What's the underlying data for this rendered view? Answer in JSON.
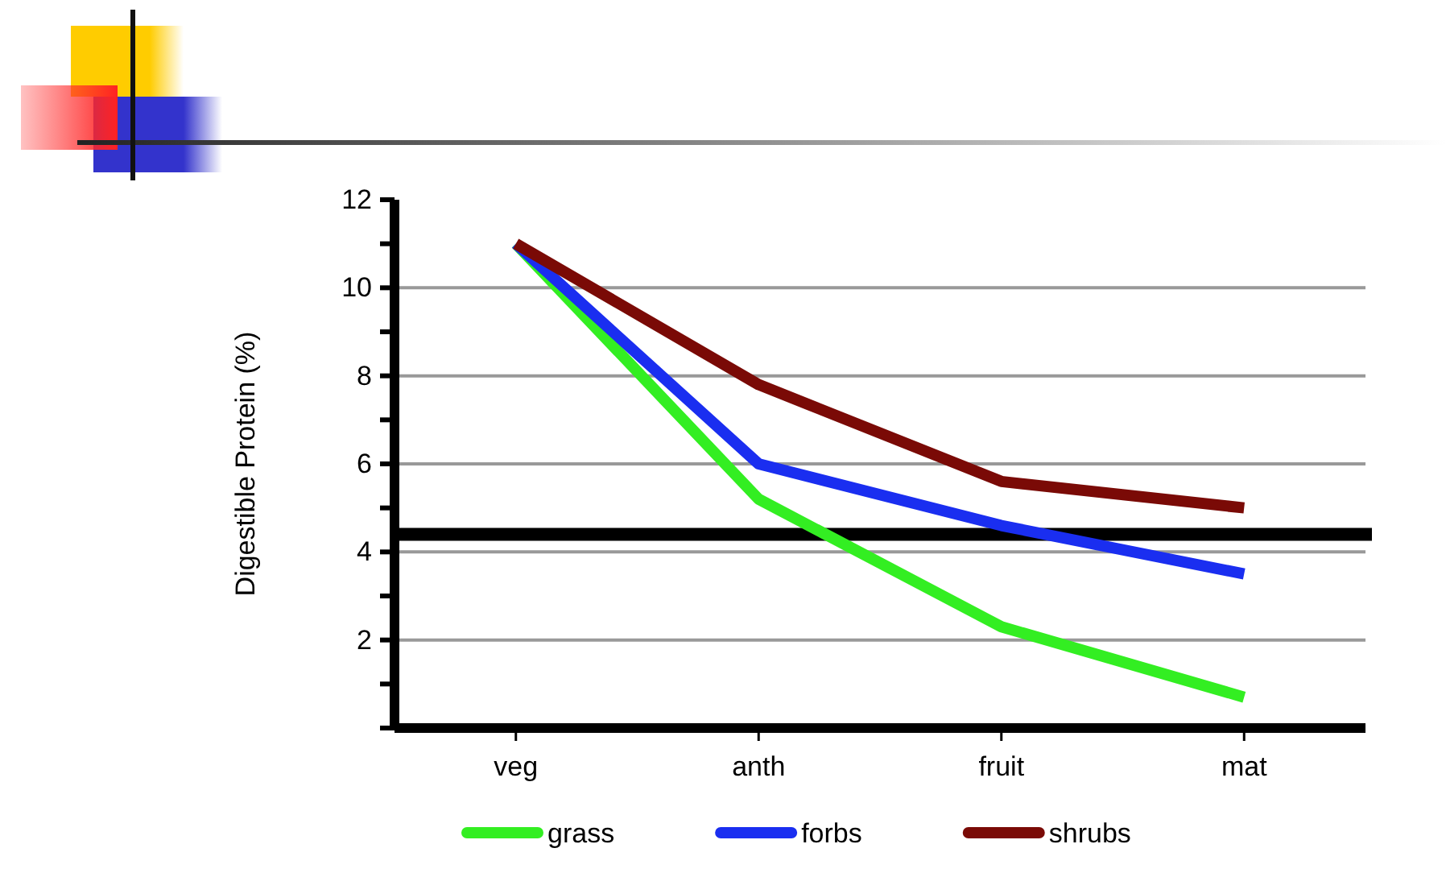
{
  "chart_data": {
    "type": "line",
    "ylabel": "Digestible Protein (%)",
    "categories": [
      "veg",
      "anth",
      "fruit",
      "mat"
    ],
    "series": [
      {
        "name": "grass",
        "color": "#33ee22",
        "values": [
          11,
          5.2,
          2.3,
          0.7
        ]
      },
      {
        "name": "forbs",
        "color": "#1a2ef0",
        "values": [
          11,
          6.0,
          4.6,
          3.5
        ]
      },
      {
        "name": "shrubs",
        "color": "#7a0a06",
        "values": [
          11,
          7.8,
          5.6,
          5.0
        ]
      }
    ],
    "ylim": [
      0,
      12
    ],
    "yticks": [
      {
        "value": 0,
        "label": null
      },
      {
        "value": 1,
        "label": null
      },
      2,
      {
        "value": 3,
        "label": null
      },
      4,
      {
        "value": 5,
        "label": null
      },
      6,
      {
        "value": 7,
        "label": null
      },
      8,
      {
        "value": 9,
        "label": null
      },
      10,
      {
        "value": 11,
        "label": null
      },
      12
    ],
    "ref_lines": [
      {
        "axis": "y",
        "value": 4.4,
        "label": null,
        "color": "#000000"
      }
    ],
    "grid": "y",
    "legend": "bottom",
    "marker": "none",
    "line_style": "solid"
  }
}
